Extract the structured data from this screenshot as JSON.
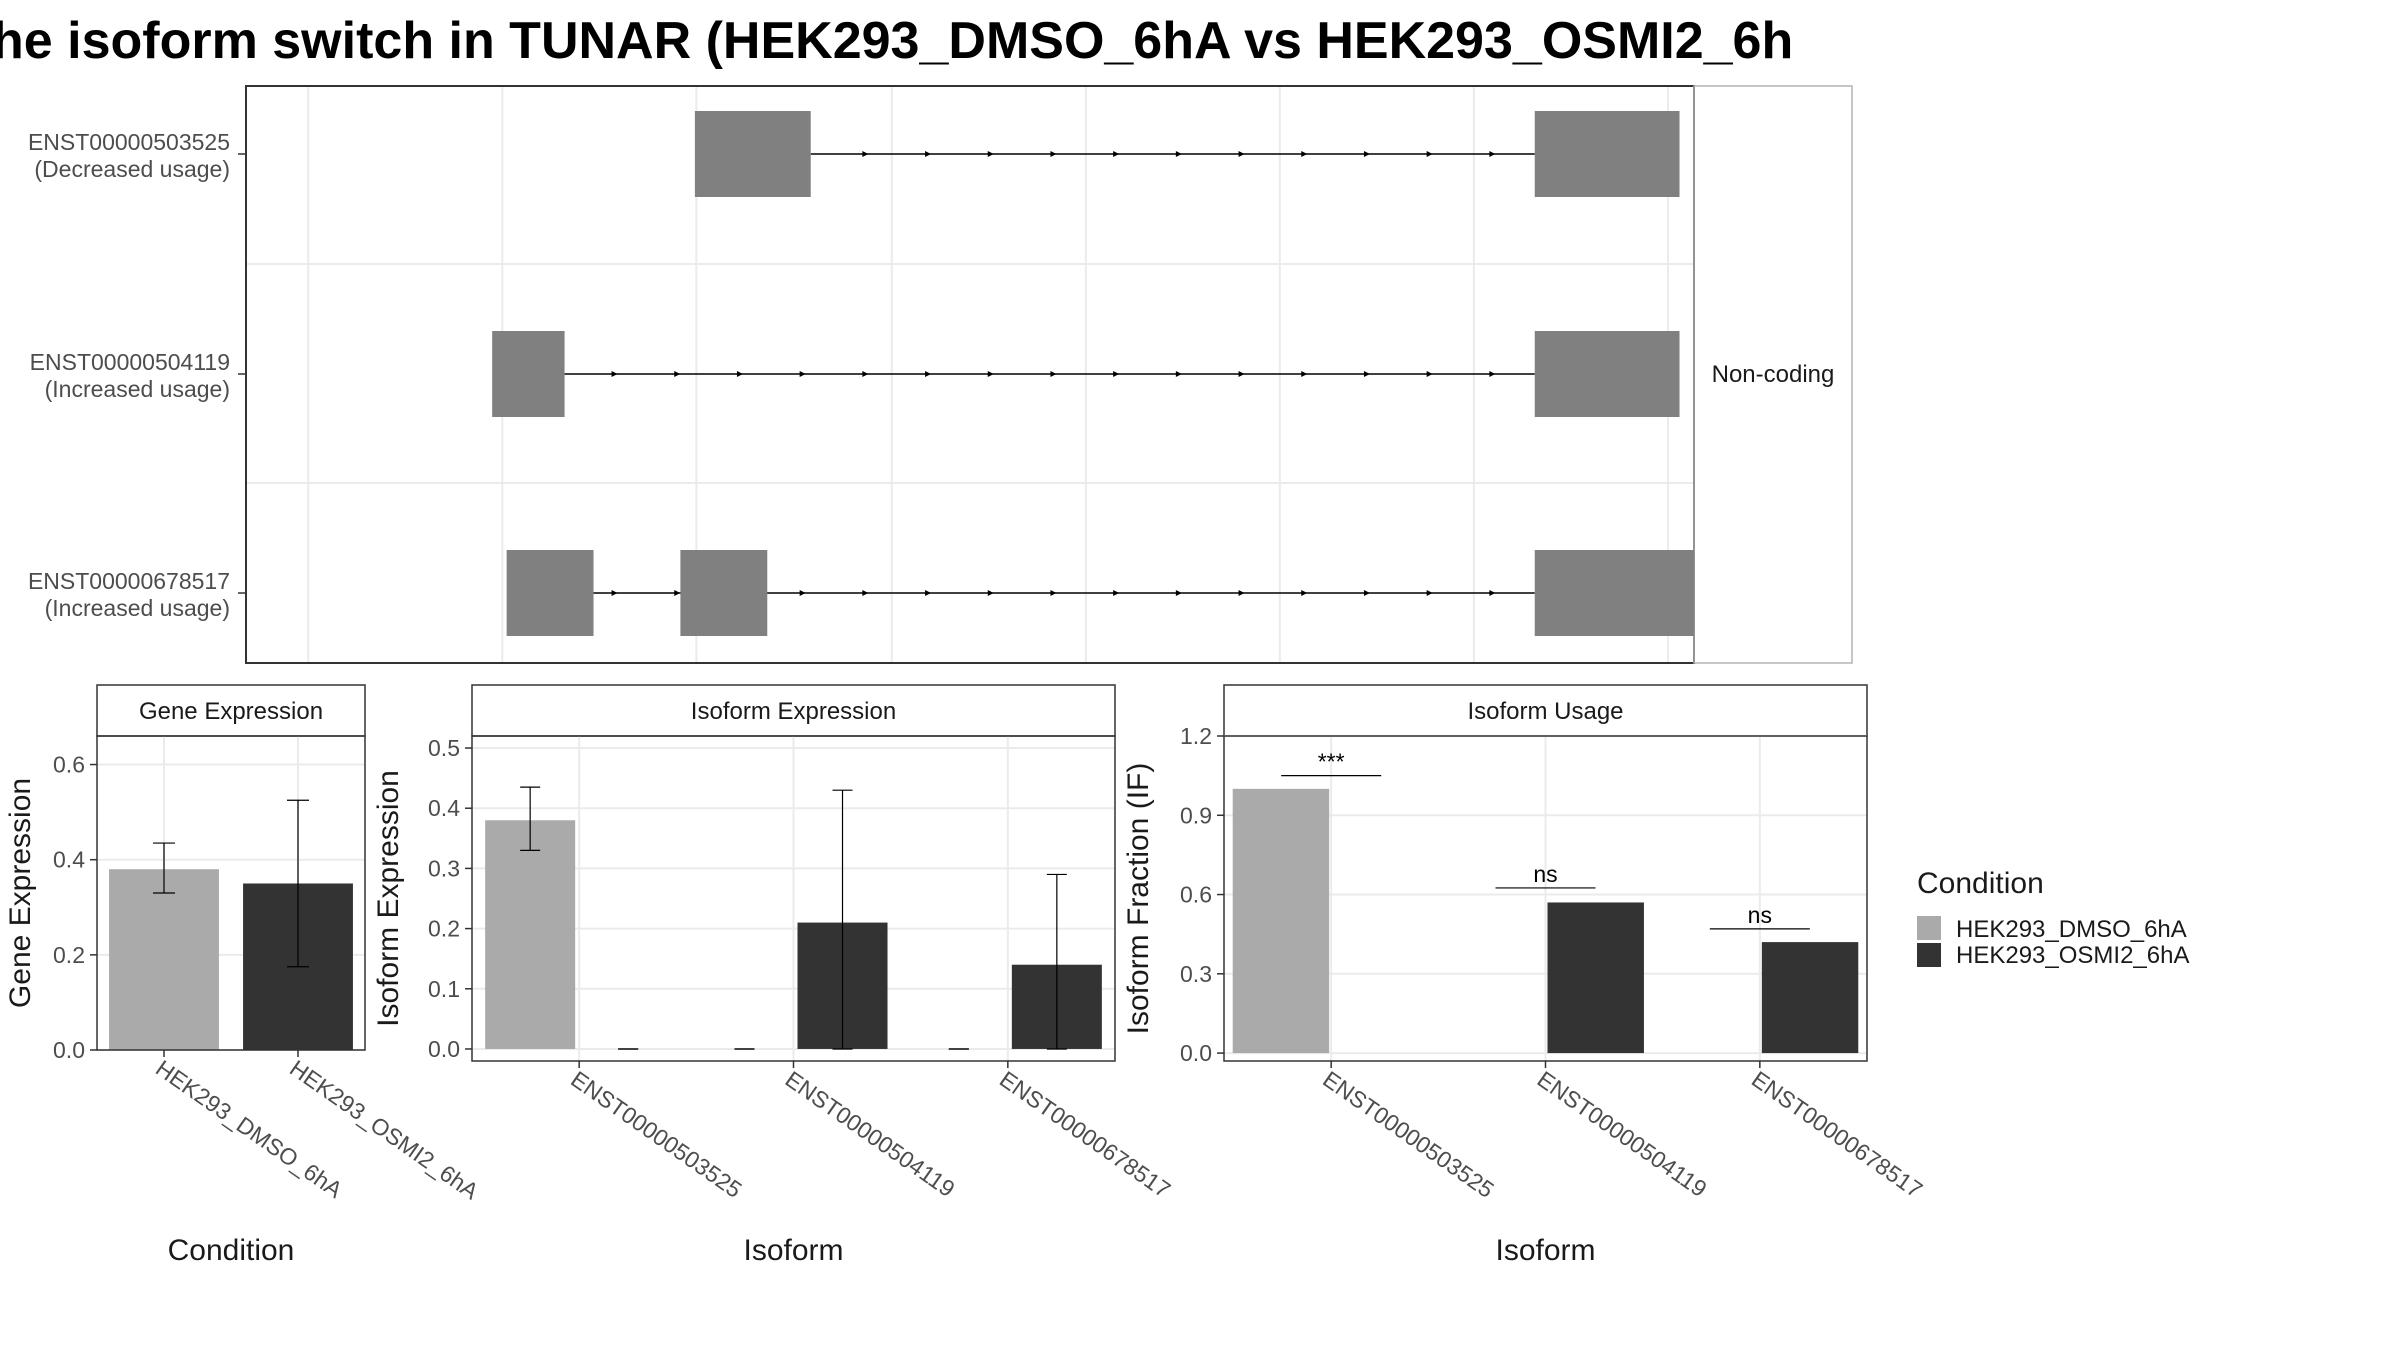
{
  "title": "he isoform switch in TUNAR (HEK293_DMSO_6hA vs HEK293_OSMI2_6h",
  "colors": {
    "dmso": "#aaaaaa",
    "osmi2": "#333333",
    "exon": "#808080",
    "grid": "#ebebeb",
    "frame": "#333333"
  },
  "legend": {
    "title": "Condition",
    "placement": "right",
    "items": [
      {
        "label": "HEK293_DMSO_6hA",
        "color": "#aaaaaa"
      },
      {
        "label": "HEK293_OSMI2_6hA",
        "color": "#333333"
      }
    ]
  },
  "chart_data": [
    {
      "type": "gene-structure",
      "facet_label": "Non-coding",
      "grid": true,
      "transcripts": [
        {
          "id": "ENST00000503525",
          "usage": "(Decreased usage)",
          "exons": [
            [
              0.31,
              0.39
            ],
            [
              0.89,
              0.99
            ]
          ]
        },
        {
          "id": "ENST00000504119",
          "usage": "(Increased usage)",
          "exons": [
            [
              0.17,
              0.22
            ],
            [
              0.89,
              0.99
            ]
          ]
        },
        {
          "id": "ENST00000678517",
          "usage": "(Increased usage)",
          "exons": [
            [
              0.18,
              0.24
            ],
            [
              0.3,
              0.36
            ],
            [
              0.89,
              1.0
            ]
          ]
        }
      ]
    },
    {
      "type": "bar",
      "panel_title": "Gene Expression",
      "xlabel": "Condition",
      "ylabel": "Gene Expression",
      "ylim": [
        0,
        0.66
      ],
      "yticks": [
        "0.0",
        "0.2",
        "0.4",
        "0.6"
      ],
      "categories": [
        "HEK293_DMSO_6hA",
        "HEK293_OSMI2_6hA"
      ],
      "values": [
        0.38,
        0.35
      ],
      "errors": [
        [
          0.33,
          0.435
        ],
        [
          0.175,
          0.525
        ]
      ]
    },
    {
      "type": "bar",
      "panel_title": "Isoform Expression",
      "xlabel": "Isoform",
      "ylabel": "Isoform Expression",
      "ylim": [
        -0.02,
        0.52
      ],
      "yticks": [
        "0.0",
        "0.1",
        "0.2",
        "0.3",
        "0.4",
        "0.5"
      ],
      "categories": [
        "ENST00000503525",
        "ENST00000504119",
        "ENST00000678517"
      ],
      "series": [
        {
          "name": "HEK293_DMSO_6hA",
          "values": [
            0.38,
            0,
            0
          ],
          "errors": [
            [
              0.33,
              0.435
            ],
            [
              0,
              0
            ],
            [
              0,
              0
            ]
          ]
        },
        {
          "name": "HEK293_OSMI2_6hA",
          "values": [
            0,
            0.21,
            0.14
          ],
          "errors": [
            [
              0,
              0
            ],
            [
              0,
              0.43
            ],
            [
              0,
              0.29
            ]
          ]
        }
      ]
    },
    {
      "type": "bar",
      "panel_title": "Isoform Usage",
      "xlabel": "Isoform",
      "ylabel": "Isoform Fraction (IF)",
      "ylim": [
        -0.03,
        1.2
      ],
      "yticks": [
        "0.0",
        "0.3",
        "0.6",
        "0.9",
        "1.2"
      ],
      "categories": [
        "ENST00000503525",
        "ENST00000504119",
        "ENST00000678517"
      ],
      "series": [
        {
          "name": "HEK293_DMSO_6hA",
          "values": [
            1.0,
            0,
            0
          ]
        },
        {
          "name": "HEK293_OSMI2_6hA",
          "values": [
            0,
            0.57,
            0.42
          ]
        }
      ],
      "significance": [
        "***",
        "ns",
        "ns"
      ],
      "significance_y": [
        1.05,
        0.625,
        0.47
      ]
    }
  ]
}
